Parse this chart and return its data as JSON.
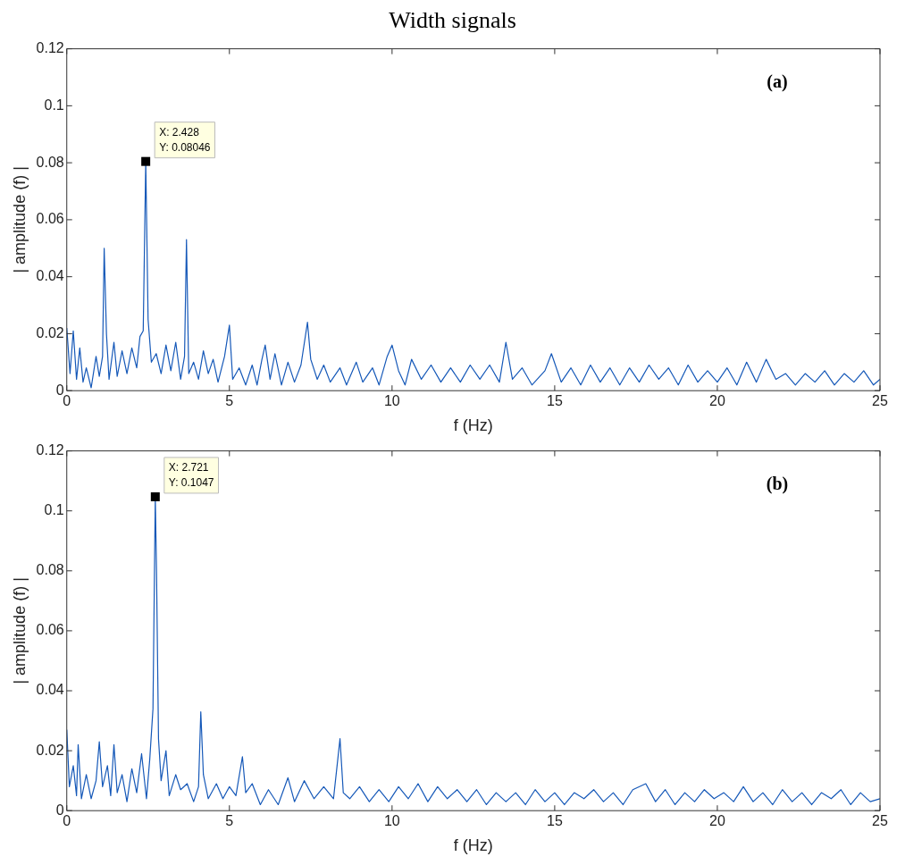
{
  "chart_data": [
    {
      "type": "line",
      "title": "Width signals",
      "xlabel": "f (Hz)",
      "ylabel": "| amplitude (f) |",
      "xlim": [
        0,
        25
      ],
      "ylim": [
        0,
        0.12
      ],
      "xticks": [
        0,
        5,
        10,
        15,
        20,
        25
      ],
      "yticks": [
        0,
        0.02,
        0.04,
        0.06,
        0.08,
        0.1,
        0.12
      ],
      "grid": false,
      "legend": false,
      "marker": "none",
      "line_style": "solid",
      "color": "#1558b8",
      "annotations": [
        "(a)",
        {
          "text": "X: 2.428\nY: 0.08046",
          "x": 2.428,
          "y": 0.08046
        }
      ],
      "x": [
        0,
        0.1,
        0.2,
        0.3,
        0.4,
        0.5,
        0.6,
        0.75,
        0.9,
        1.0,
        1.1,
        1.15,
        1.22,
        1.3,
        1.45,
        1.55,
        1.7,
        1.85,
        2.0,
        2.15,
        2.25,
        2.35,
        2.428,
        2.5,
        2.6,
        2.75,
        2.9,
        3.05,
        3.2,
        3.35,
        3.5,
        3.62,
        3.68,
        3.75,
        3.9,
        4.05,
        4.2,
        4.35,
        4.5,
        4.65,
        4.85,
        5.0,
        5.1,
        5.3,
        5.5,
        5.7,
        5.85,
        6.0,
        6.1,
        6.25,
        6.4,
        6.6,
        6.8,
        7.0,
        7.2,
        7.4,
        7.5,
        7.7,
        7.9,
        8.1,
        8.4,
        8.6,
        8.9,
        9.1,
        9.4,
        9.6,
        9.85,
        10.0,
        10.2,
        10.4,
        10.6,
        10.9,
        11.2,
        11.5,
        11.8,
        12.1,
        12.4,
        12.7,
        13.0,
        13.3,
        13.5,
        13.7,
        14.0,
        14.3,
        14.7,
        14.9,
        15.2,
        15.5,
        15.8,
        16.1,
        16.4,
        16.7,
        17.0,
        17.3,
        17.6,
        17.9,
        18.2,
        18.5,
        18.8,
        19.1,
        19.4,
        19.7,
        20.0,
        20.3,
        20.6,
        20.9,
        21.2,
        21.5,
        21.8,
        22.1,
        22.4,
        22.7,
        23.0,
        23.3,
        23.6,
        23.9,
        24.2,
        24.5,
        24.8,
        25.0
      ],
      "values": [
        0.022,
        0.006,
        0.021,
        0.004,
        0.015,
        0.003,
        0.008,
        0.001,
        0.012,
        0.005,
        0.012,
        0.05,
        0.02,
        0.004,
        0.017,
        0.005,
        0.014,
        0.006,
        0.015,
        0.008,
        0.019,
        0.021,
        0.08046,
        0.025,
        0.01,
        0.013,
        0.006,
        0.016,
        0.007,
        0.017,
        0.004,
        0.012,
        0.053,
        0.006,
        0.01,
        0.004,
        0.014,
        0.006,
        0.011,
        0.003,
        0.012,
        0.023,
        0.004,
        0.008,
        0.002,
        0.009,
        0.002,
        0.011,
        0.016,
        0.004,
        0.013,
        0.002,
        0.01,
        0.003,
        0.009,
        0.024,
        0.011,
        0.004,
        0.009,
        0.003,
        0.008,
        0.002,
        0.01,
        0.003,
        0.008,
        0.002,
        0.012,
        0.016,
        0.007,
        0.002,
        0.011,
        0.004,
        0.009,
        0.003,
        0.008,
        0.003,
        0.009,
        0.004,
        0.009,
        0.003,
        0.017,
        0.004,
        0.008,
        0.002,
        0.007,
        0.013,
        0.003,
        0.008,
        0.002,
        0.009,
        0.003,
        0.008,
        0.002,
        0.008,
        0.003,
        0.009,
        0.004,
        0.008,
        0.002,
        0.009,
        0.003,
        0.007,
        0.003,
        0.008,
        0.002,
        0.01,
        0.003,
        0.011,
        0.004,
        0.006,
        0.002,
        0.006,
        0.003,
        0.007,
        0.002,
        0.006,
        0.003,
        0.007,
        0.002,
        0.004
      ]
    },
    {
      "type": "line",
      "xlabel": "f (Hz)",
      "ylabel": "| amplitude (f) |",
      "xlim": [
        0,
        25
      ],
      "ylim": [
        0,
        0.12
      ],
      "xticks": [
        0,
        5,
        10,
        15,
        20,
        25
      ],
      "yticks": [
        0,
        0.02,
        0.04,
        0.06,
        0.08,
        0.1,
        0.12
      ],
      "grid": false,
      "legend": false,
      "marker": "none",
      "line_style": "solid",
      "color": "#1558b8",
      "annotations": [
        "(b)",
        {
          "text": "X: 2.721\nY: 0.1047",
          "x": 2.721,
          "y": 0.1047
        }
      ],
      "x": [
        0,
        0.08,
        0.2,
        0.3,
        0.35,
        0.45,
        0.6,
        0.75,
        0.9,
        1.0,
        1.1,
        1.25,
        1.35,
        1.45,
        1.55,
        1.7,
        1.85,
        2.0,
        2.15,
        2.3,
        2.45,
        2.55,
        2.65,
        2.721,
        2.76,
        2.82,
        2.9,
        3.05,
        3.15,
        3.35,
        3.5,
        3.7,
        3.9,
        4.05,
        4.12,
        4.2,
        4.35,
        4.6,
        4.8,
        5.0,
        5.2,
        5.4,
        5.5,
        5.7,
        5.95,
        6.2,
        6.5,
        6.8,
        7.0,
        7.3,
        7.6,
        7.9,
        8.2,
        8.4,
        8.5,
        8.7,
        9.0,
        9.3,
        9.6,
        9.9,
        10.2,
        10.5,
        10.8,
        11.1,
        11.4,
        11.7,
        12.0,
        12.3,
        12.6,
        12.9,
        13.2,
        13.5,
        13.8,
        14.1,
        14.4,
        14.7,
        15.0,
        15.3,
        15.6,
        15.9,
        16.2,
        16.5,
        16.8,
        17.1,
        17.4,
        17.8,
        18.1,
        18.4,
        18.7,
        19.0,
        19.3,
        19.6,
        19.9,
        20.2,
        20.5,
        20.8,
        21.1,
        21.4,
        21.7,
        22.0,
        22.3,
        22.6,
        22.9,
        23.2,
        23.5,
        23.8,
        24.1,
        24.4,
        24.7,
        25.0
      ],
      "values": [
        0.027,
        0.008,
        0.015,
        0.005,
        0.022,
        0.004,
        0.012,
        0.004,
        0.01,
        0.023,
        0.008,
        0.015,
        0.005,
        0.022,
        0.006,
        0.012,
        0.003,
        0.014,
        0.006,
        0.019,
        0.004,
        0.017,
        0.034,
        0.1047,
        0.079,
        0.024,
        0.01,
        0.02,
        0.005,
        0.012,
        0.007,
        0.009,
        0.003,
        0.008,
        0.033,
        0.012,
        0.004,
        0.009,
        0.004,
        0.008,
        0.005,
        0.018,
        0.006,
        0.009,
        0.002,
        0.007,
        0.002,
        0.011,
        0.003,
        0.01,
        0.004,
        0.008,
        0.004,
        0.024,
        0.006,
        0.004,
        0.008,
        0.003,
        0.007,
        0.003,
        0.008,
        0.004,
        0.009,
        0.003,
        0.008,
        0.004,
        0.007,
        0.003,
        0.007,
        0.002,
        0.006,
        0.003,
        0.006,
        0.002,
        0.007,
        0.003,
        0.006,
        0.002,
        0.006,
        0.004,
        0.007,
        0.003,
        0.006,
        0.002,
        0.007,
        0.009,
        0.003,
        0.007,
        0.002,
        0.006,
        0.003,
        0.007,
        0.004,
        0.006,
        0.003,
        0.008,
        0.003,
        0.006,
        0.002,
        0.007,
        0.003,
        0.006,
        0.002,
        0.006,
        0.004,
        0.007,
        0.002,
        0.006,
        0.003,
        0.004
      ]
    }
  ]
}
